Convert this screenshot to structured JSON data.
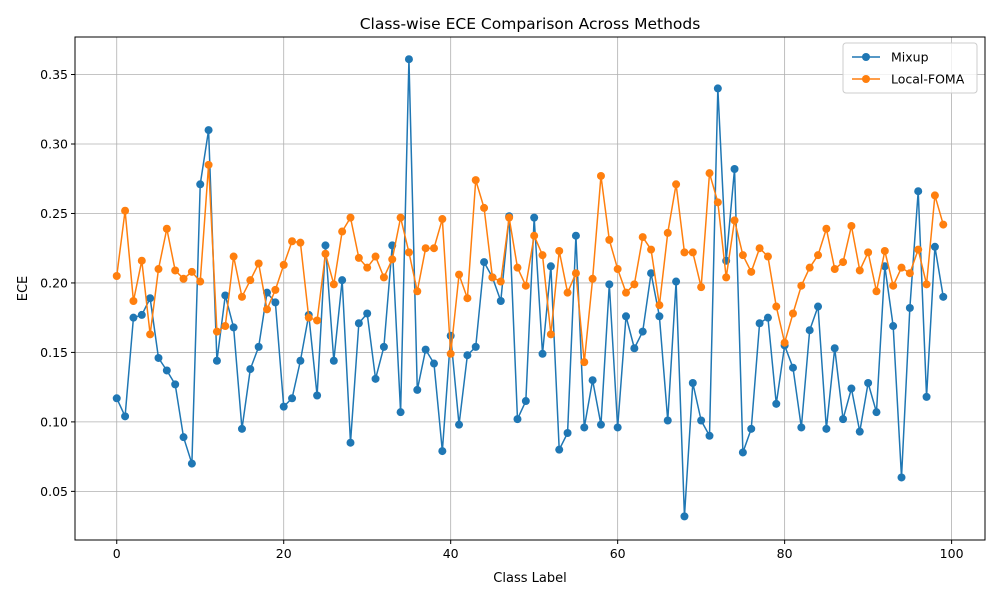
{
  "chart_data": {
    "type": "line",
    "title": "Class-wise ECE Comparison Across Methods",
    "xlabel": "Class Label",
    "ylabel": "ECE",
    "xlim": [
      -5,
      104
    ],
    "ylim": [
      0.015,
      0.377
    ],
    "xticks": [
      0,
      20,
      40,
      60,
      80,
      100
    ],
    "yticks": [
      0.05,
      0.1,
      0.15,
      0.2,
      0.25,
      0.3,
      0.35
    ],
    "ytick_labels": [
      "0.05",
      "0.10",
      "0.15",
      "0.20",
      "0.25",
      "0.30",
      "0.35"
    ],
    "grid": true,
    "legend_position": "top-right",
    "x": [
      0,
      1,
      2,
      3,
      4,
      5,
      6,
      7,
      8,
      9,
      10,
      11,
      12,
      13,
      14,
      15,
      16,
      17,
      18,
      19,
      20,
      21,
      22,
      23,
      24,
      25,
      26,
      27,
      28,
      29,
      30,
      31,
      32,
      33,
      34,
      35,
      36,
      37,
      38,
      39,
      40,
      41,
      42,
      43,
      44,
      45,
      46,
      47,
      48,
      49,
      50,
      51,
      52,
      53,
      54,
      55,
      56,
      57,
      58,
      59,
      60,
      61,
      62,
      63,
      64,
      65,
      66,
      67,
      68,
      69,
      70,
      71,
      72,
      73,
      74,
      75,
      76,
      77,
      78,
      79,
      80,
      81,
      82,
      83,
      84,
      85,
      86,
      87,
      88,
      89,
      90,
      91,
      92,
      93,
      94,
      95,
      96,
      97,
      98,
      99
    ],
    "series": [
      {
        "name": "Mixup",
        "color": "#1f77b4",
        "values": [
          0.117,
          0.104,
          0.175,
          0.177,
          0.189,
          0.146,
          0.137,
          0.127,
          0.089,
          0.07,
          0.271,
          0.31,
          0.144,
          0.191,
          0.168,
          0.095,
          0.138,
          0.154,
          0.193,
          0.186,
          0.111,
          0.117,
          0.144,
          0.177,
          0.119,
          0.227,
          0.144,
          0.202,
          0.085,
          0.171,
          0.178,
          0.131,
          0.154,
          0.227,
          0.107,
          0.361,
          0.123,
          0.152,
          0.142,
          0.079,
          0.162,
          0.098,
          0.148,
          0.154,
          0.215,
          0.204,
          0.187,
          0.248,
          0.102,
          0.115,
          0.247,
          0.149,
          0.212,
          0.08,
          0.092,
          0.234,
          0.096,
          0.13,
          0.098,
          0.199,
          0.096,
          0.176,
          0.153,
          0.165,
          0.207,
          0.176,
          0.101,
          0.201,
          0.032,
          0.128,
          0.101,
          0.09,
          0.34,
          0.216,
          0.282,
          0.078,
          0.095,
          0.171,
          0.175,
          0.113,
          0.155,
          0.139,
          0.096,
          0.166,
          0.183,
          0.095,
          0.153,
          0.102,
          0.124,
          0.093,
          0.128,
          0.107,
          0.212,
          0.169,
          0.06,
          0.182,
          0.266,
          0.118,
          0.226,
          0.19
        ]
      },
      {
        "name": "Local-FOMA",
        "color": "#ff7f0e",
        "values": [
          0.205,
          0.252,
          0.187,
          0.216,
          0.163,
          0.21,
          0.239,
          0.209,
          0.203,
          0.208,
          0.201,
          0.285,
          0.165,
          0.169,
          0.219,
          0.19,
          0.202,
          0.214,
          0.181,
          0.195,
          0.213,
          0.23,
          0.229,
          0.175,
          0.173,
          0.221,
          0.199,
          0.237,
          0.247,
          0.218,
          0.211,
          0.219,
          0.204,
          0.217,
          0.247,
          0.222,
          0.194,
          0.225,
          0.225,
          0.246,
          0.149,
          0.206,
          0.189,
          0.274,
          0.254,
          0.204,
          0.201,
          0.247,
          0.211,
          0.198,
          0.234,
          0.22,
          0.163,
          0.223,
          0.193,
          0.207,
          0.143,
          0.203,
          0.277,
          0.231,
          0.21,
          0.193,
          0.199,
          0.233,
          0.224,
          0.184,
          0.236,
          0.271,
          0.222,
          0.222,
          0.197,
          0.279,
          0.258,
          0.204,
          0.245,
          0.22,
          0.208,
          0.225,
          0.219,
          0.183,
          0.157,
          0.178,
          0.198,
          0.211,
          0.22,
          0.239,
          0.21,
          0.215,
          0.241,
          0.209,
          0.222,
          0.194,
          0.223,
          0.198,
          0.211,
          0.207,
          0.224,
          0.199,
          0.263,
          0.242
        ]
      }
    ]
  }
}
